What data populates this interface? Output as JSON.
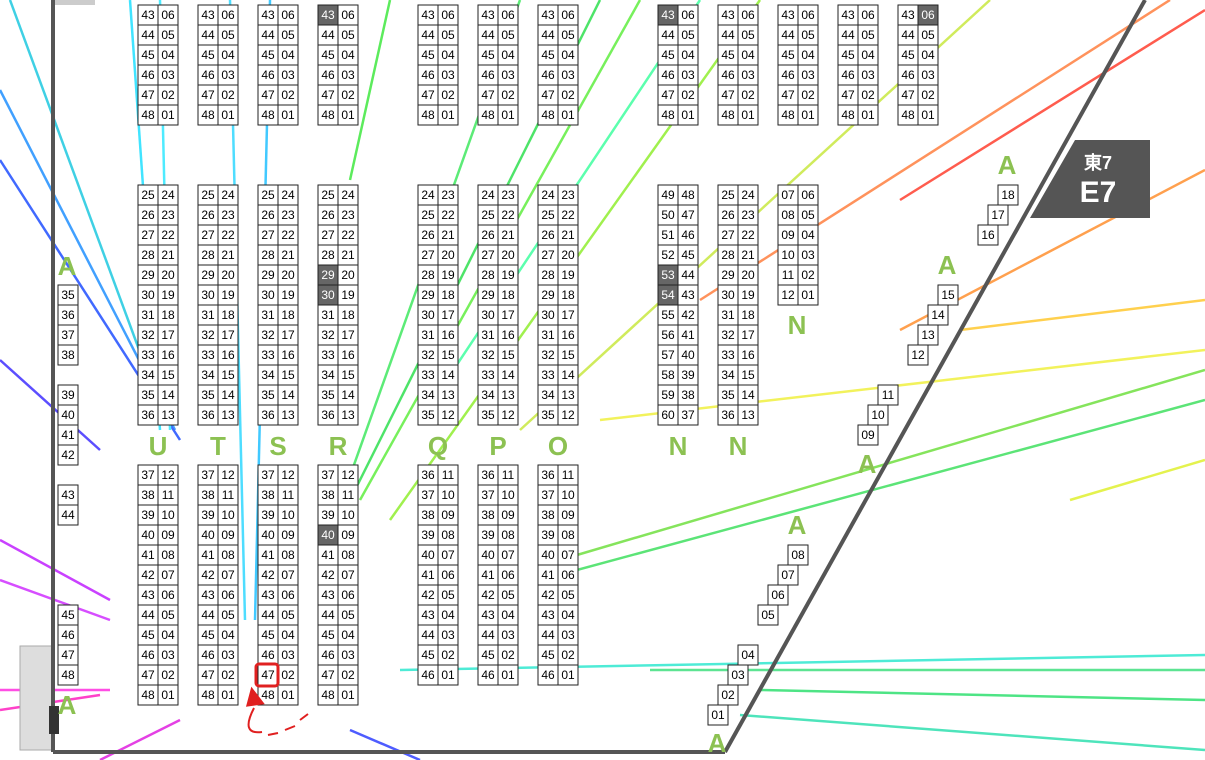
{
  "hall": {
    "ja": "東7",
    "en": "E7"
  },
  "blocks": [
    {
      "rows": [
        [
          "43",
          "06"
        ],
        [
          "44",
          "05"
        ],
        [
          "45",
          "04"
        ],
        [
          "46",
          "03"
        ],
        [
          "47",
          "02"
        ],
        [
          "48",
          "01"
        ]
      ],
      "shaded": []
    },
    {
      "rows": [
        [
          "43",
          "06"
        ],
        [
          "44",
          "05"
        ],
        [
          "45",
          "04"
        ],
        [
          "46",
          "03"
        ],
        [
          "47",
          "02"
        ],
        [
          "48",
          "01"
        ]
      ],
      "shaded": []
    },
    {
      "rows": [
        [
          "43",
          "06"
        ],
        [
          "44",
          "05"
        ],
        [
          "45",
          "04"
        ],
        [
          "46",
          "03"
        ],
        [
          "47",
          "02"
        ],
        [
          "48",
          "01"
        ]
      ],
      "shaded": []
    },
    {
      "rows": [
        [
          "43",
          "06"
        ],
        [
          "44",
          "05"
        ],
        [
          "45",
          "04"
        ],
        [
          "46",
          "03"
        ],
        [
          "47",
          "02"
        ],
        [
          "48",
          "01"
        ]
      ],
      "shaded": [
        [
          0,
          0
        ]
      ]
    },
    {
      "rows": [
        [
          "43",
          "06"
        ],
        [
          "44",
          "05"
        ],
        [
          "45",
          "04"
        ],
        [
          "46",
          "03"
        ],
        [
          "47",
          "02"
        ],
        [
          "48",
          "01"
        ]
      ],
      "shaded": []
    },
    {
      "rows": [
        [
          "43",
          "06"
        ],
        [
          "44",
          "05"
        ],
        [
          "45",
          "04"
        ],
        [
          "46",
          "03"
        ],
        [
          "47",
          "02"
        ],
        [
          "48",
          "01"
        ]
      ],
      "shaded": []
    },
    {
      "rows": [
        [
          "43",
          "06"
        ],
        [
          "44",
          "05"
        ],
        [
          "45",
          "04"
        ],
        [
          "46",
          "03"
        ],
        [
          "47",
          "02"
        ],
        [
          "48",
          "01"
        ]
      ],
      "shaded": []
    },
    {
      "rows": [
        [
          "43",
          "06"
        ],
        [
          "44",
          "05"
        ],
        [
          "45",
          "04"
        ],
        [
          "46",
          "03"
        ],
        [
          "47",
          "02"
        ],
        [
          "48",
          "01"
        ]
      ],
      "shaded": [
        [
          0,
          0
        ]
      ]
    },
    {
      "rows": [
        [
          "43",
          "06"
        ],
        [
          "44",
          "05"
        ],
        [
          "45",
          "04"
        ],
        [
          "46",
          "03"
        ],
        [
          "47",
          "02"
        ],
        [
          "48",
          "01"
        ]
      ],
      "shaded": []
    },
    {
      "rows": [
        [
          "43",
          "06"
        ],
        [
          "44",
          "05"
        ],
        [
          "45",
          "04"
        ],
        [
          "46",
          "03"
        ],
        [
          "47",
          "02"
        ],
        [
          "48",
          "01"
        ]
      ],
      "shaded": []
    },
    {
      "rows": [
        [
          "43",
          "06"
        ],
        [
          "44",
          "05"
        ],
        [
          "45",
          "04"
        ],
        [
          "46",
          "03"
        ],
        [
          "47",
          "02"
        ],
        [
          "48",
          "01"
        ]
      ],
      "shaded": []
    },
    {
      "rows": [
        [
          "43",
          "06"
        ],
        [
          "44",
          "05"
        ],
        [
          "45",
          "04"
        ],
        [
          "46",
          "03"
        ],
        [
          "47",
          "02"
        ],
        [
          "48",
          "01"
        ]
      ],
      "shaded": [
        [
          0,
          1
        ]
      ]
    },
    {
      "rows": [
        [
          "25",
          "24"
        ],
        [
          "26",
          "23"
        ],
        [
          "27",
          "22"
        ],
        [
          "28",
          "21"
        ],
        [
          "29",
          "20"
        ],
        [
          "30",
          "19"
        ],
        [
          "31",
          "18"
        ],
        [
          "32",
          "17"
        ],
        [
          "33",
          "16"
        ],
        [
          "34",
          "15"
        ],
        [
          "35",
          "14"
        ],
        [
          "36",
          "13"
        ]
      ],
      "shaded": []
    },
    {
      "rows": [
        [
          "25",
          "24"
        ],
        [
          "26",
          "23"
        ],
        [
          "27",
          "22"
        ],
        [
          "28",
          "21"
        ],
        [
          "29",
          "20"
        ],
        [
          "30",
          "19"
        ],
        [
          "31",
          "18"
        ],
        [
          "32",
          "17"
        ],
        [
          "33",
          "16"
        ],
        [
          "34",
          "15"
        ],
        [
          "35",
          "14"
        ],
        [
          "36",
          "13"
        ]
      ],
      "shaded": []
    },
    {
      "rows": [
        [
          "25",
          "24"
        ],
        [
          "26",
          "23"
        ],
        [
          "27",
          "22"
        ],
        [
          "28",
          "21"
        ],
        [
          "29",
          "20"
        ],
        [
          "30",
          "19"
        ],
        [
          "31",
          "18"
        ],
        [
          "32",
          "17"
        ],
        [
          "33",
          "16"
        ],
        [
          "34",
          "15"
        ],
        [
          "35",
          "14"
        ],
        [
          "36",
          "13"
        ]
      ],
      "shaded": []
    },
    {
      "rows": [
        [
          "25",
          "24"
        ],
        [
          "26",
          "23"
        ],
        [
          "27",
          "22"
        ],
        [
          "28",
          "21"
        ],
        [
          "29",
          "20"
        ],
        [
          "30",
          "19"
        ],
        [
          "31",
          "18"
        ],
        [
          "32",
          "17"
        ],
        [
          "33",
          "16"
        ],
        [
          "34",
          "15"
        ],
        [
          "35",
          "14"
        ],
        [
          "36",
          "13"
        ]
      ],
      "shaded": [
        [
          4,
          0
        ],
        [
          5,
          0
        ]
      ]
    },
    {
      "rows": [
        [
          "24",
          "23"
        ],
        [
          "25",
          "22"
        ],
        [
          "26",
          "21"
        ],
        [
          "27",
          "20"
        ],
        [
          "28",
          "19"
        ],
        [
          "29",
          "18"
        ],
        [
          "30",
          "17"
        ],
        [
          "31",
          "16"
        ],
        [
          "32",
          "15"
        ],
        [
          "33",
          "14"
        ],
        [
          "34",
          "13"
        ],
        [
          "35",
          "12"
        ]
      ],
      "shaded": []
    },
    {
      "rows": [
        [
          "24",
          "23"
        ],
        [
          "25",
          "22"
        ],
        [
          "26",
          "21"
        ],
        [
          "27",
          "20"
        ],
        [
          "28",
          "19"
        ],
        [
          "29",
          "18"
        ],
        [
          "30",
          "17"
        ],
        [
          "31",
          "16"
        ],
        [
          "32",
          "15"
        ],
        [
          "33",
          "14"
        ],
        [
          "34",
          "13"
        ],
        [
          "35",
          "12"
        ]
      ],
      "shaded": []
    },
    {
      "rows": [
        [
          "24",
          "23"
        ],
        [
          "25",
          "22"
        ],
        [
          "26",
          "21"
        ],
        [
          "27",
          "20"
        ],
        [
          "28",
          "19"
        ],
        [
          "29",
          "18"
        ],
        [
          "30",
          "17"
        ],
        [
          "31",
          "16"
        ],
        [
          "32",
          "15"
        ],
        [
          "33",
          "14"
        ],
        [
          "34",
          "13"
        ],
        [
          "35",
          "12"
        ]
      ],
      "shaded": []
    },
    {
      "rows": [
        [
          "49",
          "48"
        ],
        [
          "50",
          "47"
        ],
        [
          "51",
          "46"
        ],
        [
          "52",
          "45"
        ],
        [
          "53",
          "44"
        ],
        [
          "54",
          "43"
        ],
        [
          "55",
          "42"
        ],
        [
          "56",
          "41"
        ],
        [
          "57",
          "40"
        ],
        [
          "58",
          "39"
        ],
        [
          "59",
          "38"
        ],
        [
          "60",
          "37"
        ]
      ],
      "shaded": [
        [
          4,
          0
        ],
        [
          5,
          0
        ]
      ]
    },
    {
      "rows": [
        [
          "25",
          "24"
        ],
        [
          "26",
          "23"
        ],
        [
          "27",
          "22"
        ],
        [
          "28",
          "21"
        ],
        [
          "29",
          "20"
        ],
        [
          "30",
          "19"
        ],
        [
          "31",
          "18"
        ],
        [
          "32",
          "17"
        ],
        [
          "33",
          "16"
        ],
        [
          "34",
          "15"
        ],
        [
          "35",
          "14"
        ],
        [
          "36",
          "13"
        ]
      ],
      "shaded": []
    },
    {
      "rows": [
        [
          "07",
          "06"
        ],
        [
          "08",
          "05"
        ],
        [
          "09",
          "04"
        ],
        [
          "10",
          "03"
        ],
        [
          "11",
          "02"
        ],
        [
          "12",
          "01"
        ]
      ],
      "shaded": []
    },
    {
      "rows": [
        [
          "37",
          "12"
        ],
        [
          "38",
          "11"
        ],
        [
          "39",
          "10"
        ],
        [
          "40",
          "09"
        ],
        [
          "41",
          "08"
        ],
        [
          "42",
          "07"
        ],
        [
          "43",
          "06"
        ],
        [
          "44",
          "05"
        ],
        [
          "45",
          "04"
        ],
        [
          "46",
          "03"
        ],
        [
          "47",
          "02"
        ],
        [
          "48",
          "01"
        ]
      ],
      "shaded": []
    },
    {
      "rows": [
        [
          "37",
          "12"
        ],
        [
          "38",
          "11"
        ],
        [
          "39",
          "10"
        ],
        [
          "40",
          "09"
        ],
        [
          "41",
          "08"
        ],
        [
          "42",
          "07"
        ],
        [
          "43",
          "06"
        ],
        [
          "44",
          "05"
        ],
        [
          "45",
          "04"
        ],
        [
          "46",
          "03"
        ],
        [
          "47",
          "02"
        ],
        [
          "48",
          "01"
        ]
      ],
      "shaded": []
    },
    {
      "rows": [
        [
          "37",
          "12"
        ],
        [
          "38",
          "11"
        ],
        [
          "39",
          "10"
        ],
        [
          "40",
          "09"
        ],
        [
          "41",
          "08"
        ],
        [
          "42",
          "07"
        ],
        [
          "43",
          "06"
        ],
        [
          "44",
          "05"
        ],
        [
          "45",
          "04"
        ],
        [
          "46",
          "03"
        ],
        [
          "47",
          "02"
        ],
        [
          "48",
          "01"
        ]
      ],
      "shaded": []
    },
    {
      "rows": [
        [
          "37",
          "12"
        ],
        [
          "38",
          "11"
        ],
        [
          "39",
          "10"
        ],
        [
          "40",
          "09"
        ],
        [
          "41",
          "08"
        ],
        [
          "42",
          "07"
        ],
        [
          "43",
          "06"
        ],
        [
          "44",
          "05"
        ],
        [
          "45",
          "04"
        ],
        [
          "46",
          "03"
        ],
        [
          "47",
          "02"
        ],
        [
          "48",
          "01"
        ]
      ],
      "shaded": [
        [
          3,
          0
        ]
      ]
    },
    {
      "rows": [
        [
          "36",
          "11"
        ],
        [
          "37",
          "10"
        ],
        [
          "38",
          "09"
        ],
        [
          "39",
          "08"
        ],
        [
          "40",
          "07"
        ],
        [
          "41",
          "06"
        ],
        [
          "42",
          "05"
        ],
        [
          "43",
          "04"
        ],
        [
          "44",
          "03"
        ],
        [
          "45",
          "02"
        ],
        [
          "46",
          "01"
        ]
      ],
      "shaded": []
    },
    {
      "rows": [
        [
          "36",
          "11"
        ],
        [
          "37",
          "10"
        ],
        [
          "38",
          "09"
        ],
        [
          "39",
          "08"
        ],
        [
          "40",
          "07"
        ],
        [
          "41",
          "06"
        ],
        [
          "42",
          "05"
        ],
        [
          "43",
          "04"
        ],
        [
          "44",
          "03"
        ],
        [
          "45",
          "02"
        ],
        [
          "46",
          "01"
        ]
      ],
      "shaded": []
    },
    {
      "rows": [
        [
          "36",
          "11"
        ],
        [
          "37",
          "10"
        ],
        [
          "38",
          "09"
        ],
        [
          "39",
          "08"
        ],
        [
          "40",
          "07"
        ],
        [
          "41",
          "06"
        ],
        [
          "42",
          "05"
        ],
        [
          "43",
          "04"
        ],
        [
          "44",
          "03"
        ],
        [
          "45",
          "02"
        ],
        [
          "46",
          "01"
        ]
      ],
      "shaded": []
    }
  ],
  "singles": [
    "35",
    "36",
    "37",
    "38",
    "39",
    "40",
    "41",
    "42",
    "43",
    "44",
    "45",
    "46",
    "47",
    "48"
  ],
  "stairs": [
    "18",
    "17",
    "16",
    "15",
    "14",
    "13",
    "12",
    "11",
    "10",
    "09",
    "08",
    "07",
    "06",
    "05",
    "04",
    "03",
    "02",
    "01"
  ],
  "column_letters": [
    "U",
    "T",
    "S",
    "R",
    "Q",
    "P",
    "O",
    "N",
    "N"
  ],
  "aisle_labels": [
    "A",
    "A",
    "A",
    "A",
    "A",
    "A",
    "A",
    "N"
  ]
}
